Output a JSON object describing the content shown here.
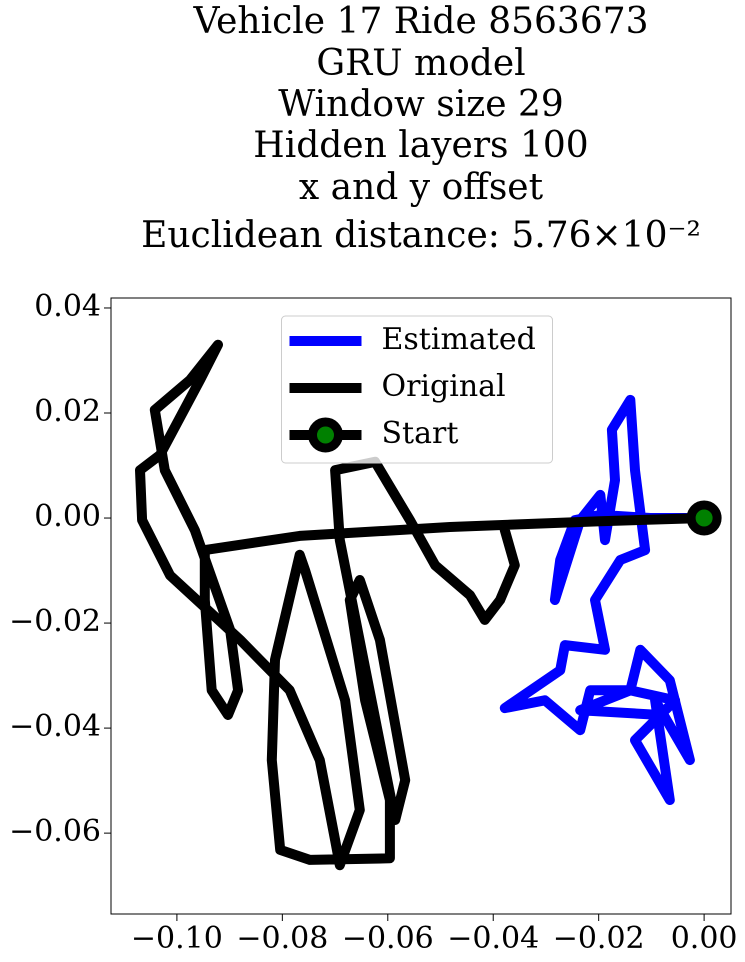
{
  "chart_data": {
    "type": "line",
    "title": [
      "Vehicle 17 Ride 8563673",
      "GRU model",
      "Window size 29",
      "Hidden layers 100",
      "x and y offset",
      "Euclidean distance: 5.76×10⁻²"
    ],
    "series": [
      {
        "name": "Estimated",
        "color": "#0000ff",
        "x": [
          0,
          -0.0102,
          -0.0197,
          -0.0245,
          -0.0273,
          -0.0283,
          -0.0235,
          -0.0197,
          -0.0188,
          -0.0169,
          -0.0175,
          -0.014,
          -0.0131,
          -0.0112,
          -0.0159,
          -0.0207,
          -0.0188,
          -0.0264,
          -0.0273,
          -0.0378,
          -0.0302,
          -0.0235,
          -0.0216,
          -0.014,
          -0.0055,
          -0.0131,
          -0.0065,
          -0.0093,
          -0.0027,
          -0.0065,
          -0.0121,
          -0.014,
          -0.0235,
          -0.0083
        ],
        "values": [
          0,
          0,
          0.0006,
          -0.0004,
          -0.008,
          -0.0156,
          -0.0004,
          0.0044,
          -0.0042,
          0.0072,
          0.0168,
          0.0225,
          0.0091,
          -0.0061,
          -0.008,
          -0.0156,
          -0.0251,
          -0.0242,
          -0.029,
          -0.0362,
          -0.0347,
          -0.0404,
          -0.0328,
          -0.0328,
          -0.0347,
          -0.0423,
          -0.0537,
          -0.0347,
          -0.0461,
          -0.0309,
          -0.0251,
          -0.0328,
          -0.0366,
          -0.0375
        ]
      },
      {
        "name": "Original",
        "color": "#000000",
        "x": [
          0,
          -0.0197,
          -0.0482,
          -0.0767,
          -0.0947,
          -0.0947,
          -0.0934,
          -0.0903,
          -0.0884,
          -0.0899,
          -0.0966,
          -0.1023,
          -0.1042,
          -0.0975,
          -0.0922,
          -0.0956,
          -0.1032,
          -0.107,
          -0.1066,
          -0.1013,
          -0.088,
          -0.0786,
          -0.0729,
          -0.07,
          -0.0691,
          -0.0653,
          -0.0681,
          -0.0757,
          -0.0767,
          -0.0814,
          -0.082,
          -0.0804,
          -0.0748,
          -0.0596,
          -0.0596,
          -0.0643,
          -0.0672,
          -0.0653,
          -0.0615,
          -0.0567,
          -0.0586,
          -0.0691,
          -0.07,
          -0.0624,
          -0.0558,
          -0.051,
          -0.0444,
          -0.0416,
          -0.0387,
          -0.0359,
          -0.0378
        ],
        "values": [
          0,
          -0.0006,
          -0.0017,
          -0.0034,
          -0.0061,
          -0.0156,
          -0.0328,
          -0.0375,
          -0.0328,
          -0.0213,
          -0.0023,
          0.0091,
          0.0206,
          0.0263,
          0.033,
          0.0263,
          0.012,
          0.0091,
          -0.0004,
          -0.0109,
          -0.0232,
          -0.0328,
          -0.0461,
          -0.0613,
          -0.0661,
          -0.0556,
          -0.0347,
          -0.0099,
          -0.007,
          -0.027,
          -0.0461,
          -0.0632,
          -0.0651,
          -0.0648,
          -0.0537,
          -0.0347,
          -0.0156,
          -0.0118,
          -0.0232,
          -0.0499,
          -0.0575,
          -0.0042,
          0.0091,
          0.0107,
          -0.0004,
          -0.009,
          -0.0147,
          -0.0194,
          -0.0156,
          -0.009,
          -0.0023
        ]
      }
    ],
    "start": {
      "name": "Start",
      "x": 0,
      "y": 0,
      "color": "#008000",
      "edge": "#000000"
    },
    "xlim": [
      -0.1125,
      0.0051
    ],
    "ylim": [
      -0.0754,
      0.0419
    ],
    "xticks": [
      {
        "value": -0.1,
        "label": "−0.10"
      },
      {
        "value": -0.08,
        "label": "−0.08"
      },
      {
        "value": -0.06,
        "label": "−0.06"
      },
      {
        "value": -0.04,
        "label": "−0.04"
      },
      {
        "value": -0.02,
        "label": "−0.02"
      },
      {
        "value": 0,
        "label": "0.00"
      }
    ],
    "yticks": [
      {
        "value": -0.06,
        "label": "−0.06"
      },
      {
        "value": -0.04,
        "label": "−0.04"
      },
      {
        "value": -0.02,
        "label": "−0.02"
      },
      {
        "value": 0,
        "label": "0.00"
      },
      {
        "value": 0.02,
        "label": "0.02"
      },
      {
        "value": 0.04,
        "label": "0.04"
      }
    ],
    "grid": false,
    "legend": "upper center"
  }
}
